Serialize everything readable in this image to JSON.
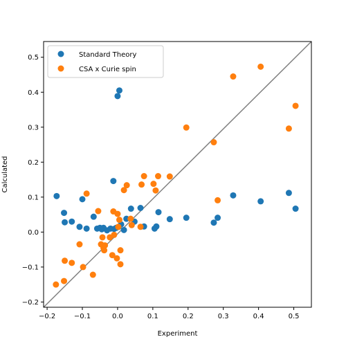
{
  "chart_data": {
    "type": "scatter",
    "xlabel": "Experiment",
    "ylabel": "Calculated",
    "xlim": [
      -0.21,
      0.55
    ],
    "ylim": [
      -0.215,
      0.545
    ],
    "xticks": [
      -0.2,
      -0.1,
      0.0,
      0.1,
      0.2,
      0.3,
      0.4,
      0.5
    ],
    "xtick_labels": [
      "−0.2",
      "−0.1",
      "0.0",
      "0.1",
      "0.2",
      "0.3",
      "0.4",
      "0.5"
    ],
    "yticks": [
      -0.2,
      -0.1,
      0.0,
      0.1,
      0.2,
      0.3,
      0.4,
      0.5
    ],
    "ytick_labels": [
      "−0.2",
      "−0.1",
      "0.0",
      "0.1",
      "0.2",
      "0.3",
      "0.4",
      "0.5"
    ],
    "grid": false,
    "legend_position": "top-left",
    "reference_line": {
      "from": [
        -0.21,
        -0.215
      ],
      "to": [
        0.55,
        0.545
      ],
      "color": "#808080"
    },
    "series": [
      {
        "name": "Standard Theory",
        "color": "#1f77b4",
        "points": [
          [
            -0.173,
            0.103
          ],
          [
            -0.152,
            0.055
          ],
          [
            -0.15,
            0.028
          ],
          [
            -0.13,
            0.03
          ],
          [
            -0.108,
            0.015
          ],
          [
            -0.1,
            0.094
          ],
          [
            -0.088,
            0.01
          ],
          [
            -0.068,
            0.044
          ],
          [
            -0.058,
            0.01
          ],
          [
            -0.05,
            0.012
          ],
          [
            -0.045,
            0.008
          ],
          [
            -0.04,
            0.012
          ],
          [
            -0.03,
            0.005
          ],
          [
            -0.02,
            0.01
          ],
          [
            -0.012,
            0.146
          ],
          [
            -0.01,
            0.009
          ],
          [
            -0.004,
            0.012
          ],
          [
            0.0,
            0.389
          ],
          [
            0.005,
            0.405
          ],
          [
            0.003,
            0.015
          ],
          [
            0.01,
            0.022
          ],
          [
            0.018,
            0.006
          ],
          [
            0.025,
            0.038
          ],
          [
            0.038,
            0.067
          ],
          [
            0.048,
            0.03
          ],
          [
            0.065,
            0.069
          ],
          [
            0.075,
            0.016
          ],
          [
            0.105,
            0.01
          ],
          [
            0.11,
            0.016
          ],
          [
            0.116,
            0.057
          ],
          [
            0.148,
            0.037
          ],
          [
            0.195,
            0.041
          ],
          [
            0.273,
            0.027
          ],
          [
            0.284,
            0.041
          ],
          [
            0.328,
            0.105
          ],
          [
            0.406,
            0.088
          ],
          [
            0.486,
            0.112
          ],
          [
            0.505,
            0.067
          ]
        ]
      },
      {
        "name": "CSA x Curie spin",
        "color": "#ff7f0e",
        "points": [
          [
            -0.175,
            -0.15
          ],
          [
            -0.152,
            -0.14
          ],
          [
            -0.15,
            -0.082
          ],
          [
            -0.13,
            -0.088
          ],
          [
            -0.108,
            -0.035
          ],
          [
            -0.098,
            -0.1
          ],
          [
            -0.088,
            0.11
          ],
          [
            -0.07,
            -0.122
          ],
          [
            -0.055,
            0.06
          ],
          [
            -0.047,
            -0.035
          ],
          [
            -0.043,
            -0.015
          ],
          [
            -0.04,
            -0.045
          ],
          [
            -0.038,
            -0.052
          ],
          [
            -0.036,
            -0.038
          ],
          [
            -0.022,
            -0.015
          ],
          [
            -0.015,
            -0.066
          ],
          [
            -0.012,
            0.059
          ],
          [
            -0.01,
            -0.008
          ],
          [
            -0.002,
            -0.075
          ],
          [
            0.0,
            0.052
          ],
          [
            0.002,
            0.015
          ],
          [
            0.005,
            0.035
          ],
          [
            0.008,
            -0.052
          ],
          [
            0.008,
            -0.092
          ],
          [
            0.018,
            0.12
          ],
          [
            0.026,
            0.134
          ],
          [
            0.037,
            0.038
          ],
          [
            0.04,
            0.02
          ],
          [
            0.065,
            0.015
          ],
          [
            0.068,
            0.136
          ],
          [
            0.075,
            0.16
          ],
          [
            0.102,
            0.138
          ],
          [
            0.108,
            0.119
          ],
          [
            0.115,
            0.16
          ],
          [
            0.148,
            0.159
          ],
          [
            0.195,
            0.299
          ],
          [
            0.273,
            0.257
          ],
          [
            0.284,
            0.091
          ],
          [
            0.328,
            0.445
          ],
          [
            0.406,
            0.473
          ],
          [
            0.486,
            0.296
          ],
          [
            0.505,
            0.361
          ]
        ]
      }
    ]
  }
}
